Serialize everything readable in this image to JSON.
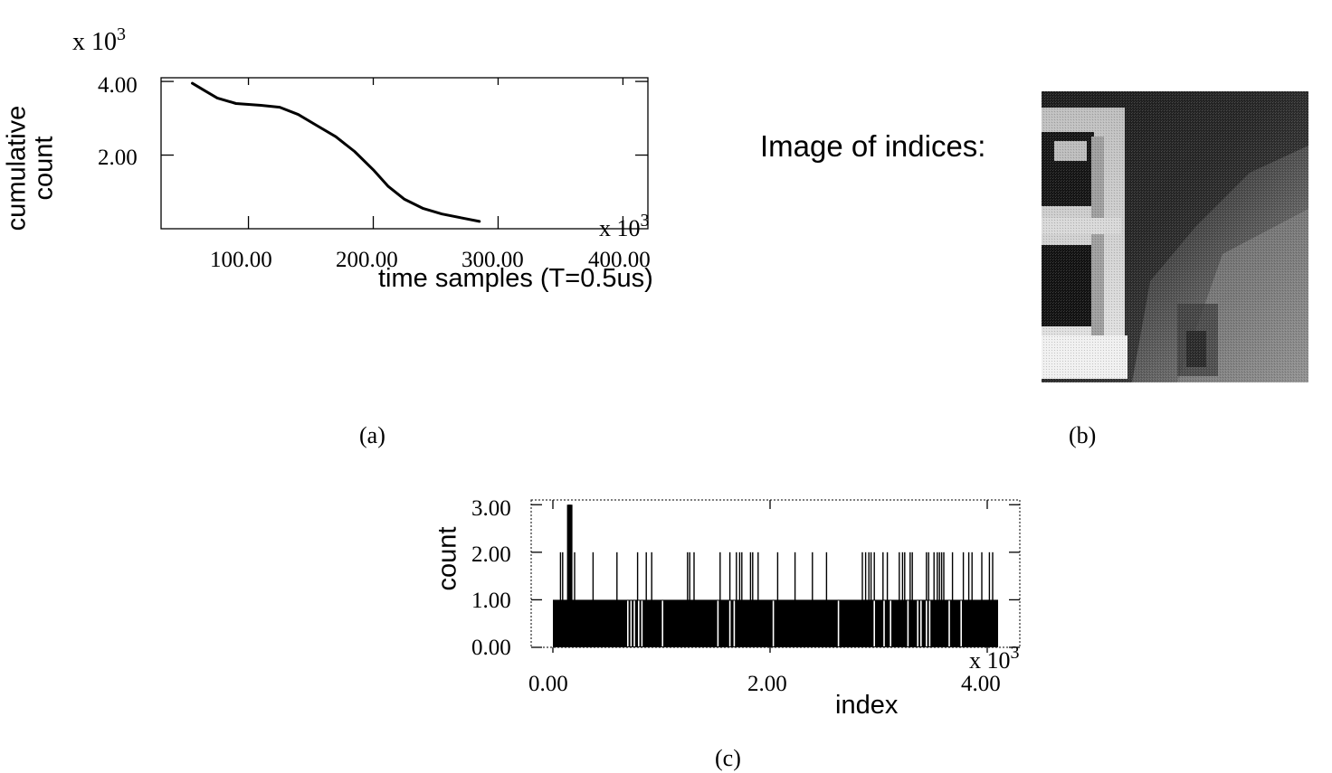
{
  "panel_a": {
    "caption": "(a)",
    "y_multiplier": "x 10",
    "y_multiplier_exp": "3",
    "x_multiplier": "x 10",
    "x_multiplier_exp": "3",
    "ylabel_line1": "cumulative",
    "ylabel_line2": "count",
    "xlabel": "time samples (T=0.5us)",
    "y_ticks": [
      "4.00",
      "2.00"
    ],
    "x_ticks": [
      "100.00",
      "200.00",
      "300.00",
      "400.00"
    ]
  },
  "panel_b": {
    "caption": "(b)",
    "label": "Image of indices:"
  },
  "panel_c": {
    "caption": "(c)",
    "ylabel": "count",
    "xlabel": "index",
    "x_multiplier": "x 10",
    "x_multiplier_exp": "3",
    "y_ticks": [
      "3.00",
      "2.00",
      "1.00",
      "0.00"
    ],
    "x_ticks": [
      "0.00",
      "2.00",
      "4.00"
    ]
  },
  "chart_data": [
    {
      "type": "line",
      "panel": "a",
      "xlabel": "time samples (T=0.5us)",
      "ylabel": "cumulative count",
      "x_scale": 1000,
      "y_scale": 1000,
      "xlim": [
        30,
        420
      ],
      "ylim": [
        0,
        4.1
      ],
      "x": [
        55,
        65,
        75,
        90,
        110,
        125,
        140,
        155,
        170,
        185,
        200,
        212,
        225,
        240,
        255,
        270,
        285
      ],
      "y": [
        3.95,
        3.75,
        3.55,
        3.4,
        3.35,
        3.3,
        3.1,
        2.8,
        2.5,
        2.1,
        1.6,
        1.15,
        0.8,
        0.55,
        0.4,
        0.3,
        0.2
      ],
      "grid": false
    },
    {
      "type": "bar",
      "panel": "c",
      "xlabel": "index",
      "ylabel": "count",
      "x_scale": 1000,
      "xlim": [
        -0.2,
        4.3
      ],
      "ylim": [
        0,
        3.1
      ],
      "baseline_count": 1,
      "baseline_range": [
        0.0,
        4.1
      ],
      "gaps_at_count_0": [
        0.69,
        0.72,
        0.75,
        0.79,
        0.82,
        1.01,
        1.52,
        1.63,
        1.67,
        2.03,
        2.63,
        2.96,
        3.05,
        3.11,
        3.27,
        3.36,
        3.39,
        3.44,
        3.47,
        3.65,
        3.76
      ],
      "x_count_2": [
        0.07,
        0.09,
        0.14,
        0.17,
        0.2,
        0.37,
        0.59,
        0.78,
        0.86,
        0.91,
        1.24,
        1.26,
        1.3,
        1.54,
        1.63,
        1.69,
        1.72,
        1.74,
        1.82,
        1.84,
        1.89,
        2.07,
        2.23,
        2.39,
        2.52,
        2.85,
        2.88,
        2.91,
        2.93,
        2.96,
        3.04,
        3.08,
        3.19,
        3.22,
        3.24,
        3.29,
        3.31,
        3.44,
        3.46,
        3.51,
        3.54,
        3.56,
        3.58,
        3.6,
        3.68,
        3.78,
        3.83,
        3.86,
        3.95,
        4.02,
        4.05
      ],
      "x_count_3": [
        0.14,
        0.15,
        0.16,
        0.17
      ]
    }
  ]
}
